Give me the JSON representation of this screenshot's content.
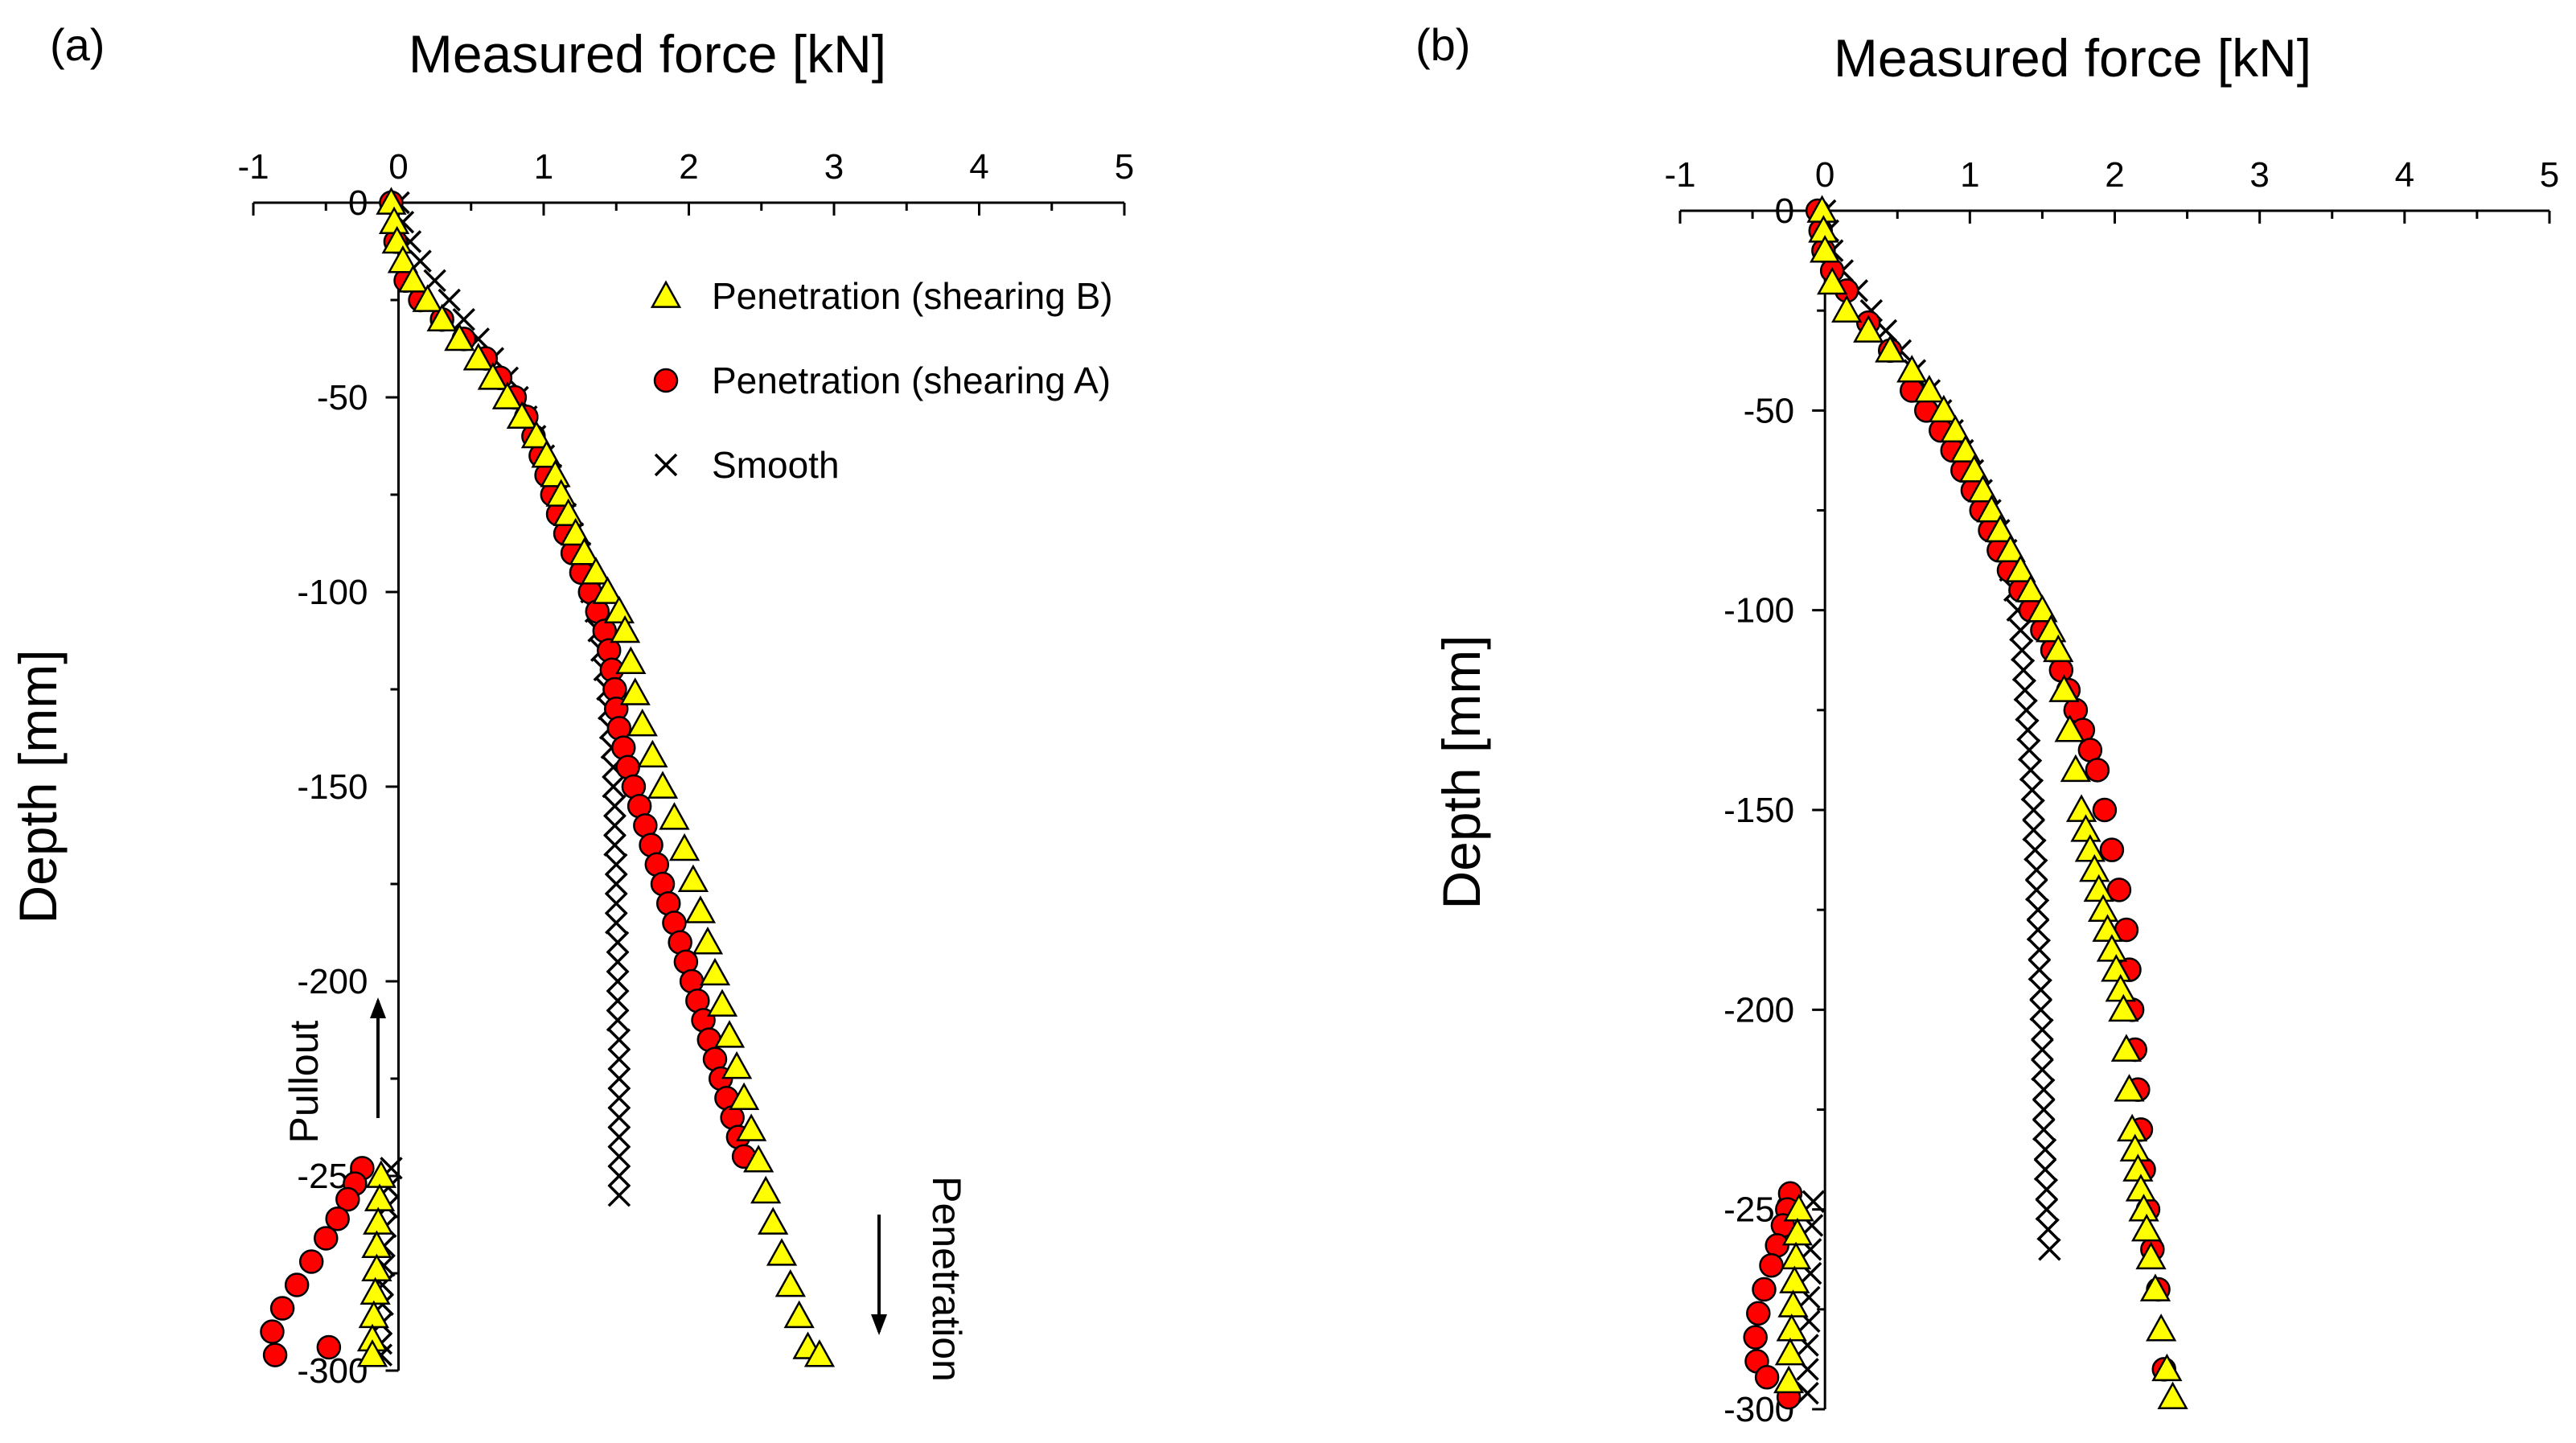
{
  "colors": {
    "triangle_fill": "#FFFF00",
    "circle_fill": "#FF0000",
    "marker_edge": "#000000",
    "axis": "#000000"
  },
  "chart_data": [
    {
      "type": "scatter",
      "panel_label": "(a)",
      "title": "",
      "xlabel": "Measured force [kN]",
      "ylabel": "Depth [mm]",
      "xlim": [
        -1,
        5
      ],
      "ylim": [
        -300,
        0
      ],
      "xticks": [
        -1,
        0,
        1,
        2,
        3,
        4,
        5
      ],
      "yticks": [
        0,
        -50,
        -100,
        -150,
        -200,
        -250,
        -300
      ],
      "x_axis_position": "top",
      "grid": false,
      "legend_position": "top-right",
      "annotations": [
        "Pullout",
        "Penetration"
      ],
      "series": [
        {
          "name": "Penetration (shearing B)",
          "marker": "triangle",
          "x": [
            -0.05,
            -0.03,
            -0.01,
            0.03,
            0.1,
            0.2,
            0.3,
            0.42,
            0.55,
            0.65,
            0.75,
            0.85,
            0.95,
            1.02,
            1.08,
            1.12,
            1.17,
            1.22,
            1.28,
            1.36,
            1.44,
            1.52,
            1.56,
            1.6,
            1.63,
            1.68,
            1.75,
            1.82,
            1.9,
            1.97,
            2.03,
            2.08,
            2.13,
            2.18,
            2.23,
            2.28,
            2.33,
            2.38,
            2.43,
            2.48,
            2.53,
            2.58,
            2.64,
            2.7,
            2.76,
            2.82,
            2.9,
            -0.12,
            -0.13,
            -0.14,
            -0.15,
            -0.15,
            -0.16,
            -0.17,
            -0.18,
            -0.18
          ],
          "y": [
            0,
            -5,
            -10,
            -15,
            -20,
            -25,
            -30,
            -35,
            -40,
            -45,
            -50,
            -55,
            -60,
            -65,
            -70,
            -75,
            -80,
            -85,
            -90,
            -95,
            -100,
            -105,
            -110,
            -118,
            -126,
            -134,
            -142,
            -150,
            -158,
            -166,
            -174,
            -182,
            -190,
            -198,
            -206,
            -214,
            -222,
            -230,
            -238,
            -246,
            -254,
            -262,
            -270,
            -278,
            -286,
            -294,
            -296,
            -250,
            -256,
            -262,
            -268,
            -274,
            -280,
            -286,
            -292,
            -296
          ]
        },
        {
          "name": "Penetration (shearing A)",
          "marker": "circle",
          "x": [
            -0.05,
            -0.02,
            0.05,
            0.15,
            0.3,
            0.45,
            0.6,
            0.7,
            0.8,
            0.88,
            0.93,
            0.98,
            1.02,
            1.06,
            1.1,
            1.15,
            1.2,
            1.26,
            1.32,
            1.37,
            1.42,
            1.45,
            1.47,
            1.49,
            1.5,
            1.52,
            1.55,
            1.58,
            1.62,
            1.66,
            1.7,
            1.74,
            1.78,
            1.82,
            1.86,
            1.9,
            1.94,
            1.98,
            2.02,
            2.06,
            2.1,
            2.14,
            2.18,
            2.22,
            2.26,
            2.3,
            2.34,
            2.38,
            -0.25,
            -0.3,
            -0.35,
            -0.42,
            -0.5,
            -0.6,
            -0.7,
            -0.8,
            -0.87,
            -0.85,
            -0.48
          ],
          "y": [
            0,
            -10,
            -20,
            -25,
            -30,
            -35,
            -40,
            -45,
            -50,
            -55,
            -60,
            -65,
            -70,
            -75,
            -80,
            -85,
            -90,
            -95,
            -100,
            -105,
            -110,
            -115,
            -120,
            -125,
            -130,
            -135,
            -140,
            -145,
            -150,
            -155,
            -160,
            -165,
            -170,
            -175,
            -180,
            -185,
            -190,
            -195,
            -200,
            -205,
            -210,
            -215,
            -220,
            -225,
            -230,
            -235,
            -240,
            -245,
            -248,
            -252,
            -256,
            -261,
            -266,
            -272,
            -278,
            -284,
            -290,
            -296,
            -294
          ]
        },
        {
          "name": "Smooth",
          "marker": "x",
          "x": [
            0,
            0.03,
            0.08,
            0.15,
            0.25,
            0.35,
            0.45,
            0.55,
            0.65,
            0.75,
            0.82,
            0.88,
            0.94,
            1.0,
            1.05,
            1.1,
            1.15,
            1.2,
            1.25,
            1.3,
            1.33,
            1.36,
            1.38,
            1.4,
            1.42,
            1.44,
            1.45,
            1.46,
            1.47,
            1.48,
            1.48,
            1.49,
            1.49,
            1.49,
            1.5,
            1.5,
            1.5,
            1.5,
            1.51,
            1.51,
            1.51,
            1.51,
            1.51,
            1.52,
            1.52,
            1.52,
            1.52,
            1.52,
            1.52,
            1.52,
            1.52,
            1.52,
            -0.05,
            -0.07,
            -0.08,
            -0.09,
            -0.1,
            -0.1,
            -0.11,
            -0.11,
            -0.12,
            -0.12,
            -0.12
          ],
          "y": [
            0,
            -5,
            -10,
            -15,
            -20,
            -25,
            -30,
            -35,
            -40,
            -45,
            -50,
            -55,
            -60,
            -65,
            -70,
            -75,
            -80,
            -85,
            -90,
            -95,
            -100,
            -105,
            -110,
            -115,
            -120,
            -125,
            -130,
            -135,
            -140,
            -145,
            -150,
            -155,
            -160,
            -165,
            -170,
            -175,
            -180,
            -185,
            -190,
            -195,
            -200,
            -205,
            -210,
            -215,
            -220,
            -225,
            -230,
            -235,
            -240,
            -245,
            -250,
            -255,
            -248,
            -253,
            -258,
            -263,
            -268,
            -273,
            -278,
            -283,
            -288,
            -293,
            -296
          ]
        }
      ]
    },
    {
      "type": "scatter",
      "panel_label": "(b)",
      "title": "",
      "xlabel": "Measured force [kN]",
      "ylabel": "Depth [mm]",
      "xlim": [
        -1,
        5
      ],
      "ylim": [
        -300,
        0
      ],
      "xticks": [
        -1,
        0,
        1,
        2,
        3,
        4,
        5
      ],
      "yticks": [
        0,
        -50,
        -100,
        -150,
        -200,
        -250,
        -300
      ],
      "x_axis_position": "top",
      "grid": false,
      "legend_position": "none",
      "series": [
        {
          "name": "Penetration (shearing B)",
          "marker": "triangle",
          "x": [
            -0.02,
            -0.01,
            0.0,
            0.05,
            0.15,
            0.3,
            0.45,
            0.6,
            0.72,
            0.82,
            0.9,
            0.97,
            1.03,
            1.09,
            1.15,
            1.21,
            1.28,
            1.35,
            1.42,
            1.5,
            1.56,
            1.61,
            1.65,
            1.69,
            1.73,
            1.77,
            1.8,
            1.83,
            1.86,
            1.89,
            1.92,
            1.95,
            1.98,
            2.01,
            2.04,
            2.06,
            2.08,
            2.1,
            2.12,
            2.14,
            2.16,
            2.18,
            2.2,
            2.22,
            2.25,
            2.28,
            2.32,
            2.36,
            2.4,
            -0.18,
            -0.19,
            -0.2,
            -0.21,
            -0.22,
            -0.23,
            -0.24,
            -0.25
          ],
          "y": [
            0,
            -5,
            -10,
            -18,
            -25,
            -30,
            -35,
            -40,
            -45,
            -50,
            -55,
            -60,
            -65,
            -70,
            -75,
            -80,
            -85,
            -90,
            -95,
            -100,
            -105,
            -110,
            -120,
            -130,
            -140,
            -150,
            -155,
            -160,
            -165,
            -170,
            -175,
            -180,
            -185,
            -190,
            -195,
            -200,
            -210,
            -220,
            -230,
            -235,
            -240,
            -245,
            -250,
            -255,
            -262,
            -270,
            -280,
            -290,
            -297,
            -250,
            -256,
            -262,
            -268,
            -274,
            -280,
            -286,
            -293
          ]
        },
        {
          "name": "Penetration (shearing A)",
          "marker": "circle",
          "x": [
            -0.05,
            -0.03,
            -0.01,
            0.05,
            0.15,
            0.3,
            0.45,
            0.6,
            0.7,
            0.8,
            0.88,
            0.95,
            1.02,
            1.08,
            1.14,
            1.2,
            1.27,
            1.35,
            1.42,
            1.5,
            1.57,
            1.63,
            1.68,
            1.73,
            1.78,
            1.83,
            1.88,
            1.93,
            1.98,
            2.03,
            2.08,
            2.1,
            2.12,
            2.14,
            2.16,
            2.18,
            2.2,
            2.23,
            2.26,
            2.3,
            2.34,
            -0.24,
            -0.26,
            -0.29,
            -0.33,
            -0.37,
            -0.42,
            -0.46,
            -0.48,
            -0.47,
            -0.4,
            -0.25
          ],
          "y": [
            0,
            -5,
            -10,
            -15,
            -20,
            -28,
            -35,
            -45,
            -50,
            -55,
            -60,
            -65,
            -70,
            -75,
            -80,
            -85,
            -90,
            -95,
            -100,
            -105,
            -110,
            -115,
            -120,
            -125,
            -130,
            -135,
            -140,
            -150,
            -160,
            -170,
            -180,
            -190,
            -200,
            -210,
            -220,
            -230,
            -240,
            -250,
            -260,
            -270,
            -290,
            -246,
            -250,
            -254,
            -259,
            -264,
            -270,
            -276,
            -282,
            -288,
            -292,
            -297
          ]
        },
        {
          "name": "Smooth",
          "marker": "x",
          "x": [
            0,
            0.02,
            0.05,
            0.12,
            0.22,
            0.32,
            0.42,
            0.52,
            0.62,
            0.72,
            0.8,
            0.88,
            0.95,
            1.02,
            1.08,
            1.14,
            1.2,
            1.25,
            1.28,
            1.31,
            1.33,
            1.35,
            1.36,
            1.37,
            1.38,
            1.39,
            1.4,
            1.41,
            1.42,
            1.43,
            1.44,
            1.44,
            1.45,
            1.46,
            1.46,
            1.47,
            1.47,
            1.48,
            1.48,
            1.49,
            1.49,
            1.5,
            1.5,
            1.5,
            1.51,
            1.51,
            1.51,
            1.52,
            1.52,
            1.53,
            1.53,
            1.54,
            1.55,
            -0.08,
            -0.09,
            -0.1,
            -0.1,
            -0.11,
            -0.11,
            -0.12,
            -0.12,
            -0.12
          ],
          "y": [
            0,
            -5,
            -10,
            -15,
            -20,
            -25,
            -30,
            -35,
            -40,
            -45,
            -50,
            -55,
            -60,
            -65,
            -70,
            -75,
            -80,
            -85,
            -90,
            -95,
            -100,
            -105,
            -110,
            -115,
            -120,
            -125,
            -130,
            -135,
            -140,
            -145,
            -150,
            -155,
            -160,
            -165,
            -170,
            -175,
            -180,
            -185,
            -190,
            -195,
            -200,
            -205,
            -210,
            -215,
            -220,
            -225,
            -230,
            -235,
            -240,
            -245,
            -250,
            -255,
            -260,
            -248,
            -254,
            -260,
            -266,
            -272,
            -278,
            -284,
            -290,
            -296
          ]
        }
      ]
    }
  ]
}
